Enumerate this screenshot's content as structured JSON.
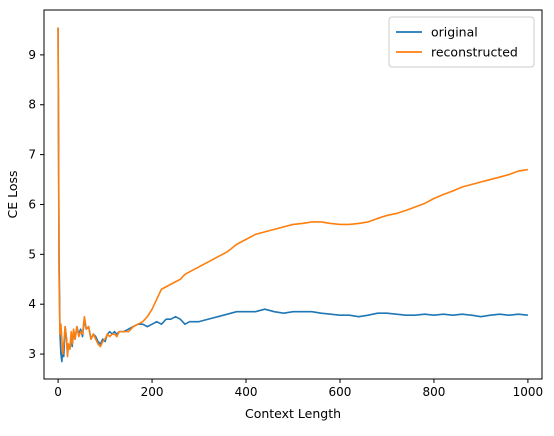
{
  "chart_data": {
    "type": "line",
    "title": "",
    "xlabel": "Context Length",
    "ylabel": "CE Loss",
    "xlim": [
      -30,
      1030
    ],
    "ylim": [
      2.5,
      9.9
    ],
    "xticks": [
      0,
      200,
      400,
      600,
      800,
      1000
    ],
    "yticks": [
      3,
      4,
      5,
      6,
      7,
      8,
      9
    ],
    "grid": false,
    "legend_position": "top-right",
    "series": [
      {
        "name": "original",
        "color": "#1f77b4",
        "x": [
          0,
          2,
          4,
          6,
          8,
          10,
          12,
          15,
          18,
          20,
          22,
          25,
          28,
          30,
          33,
          36,
          40,
          44,
          48,
          52,
          56,
          60,
          65,
          70,
          75,
          80,
          85,
          90,
          95,
          100,
          105,
          110,
          115,
          120,
          125,
          130,
          140,
          150,
          160,
          170,
          180,
          190,
          200,
          210,
          220,
          230,
          240,
          250,
          260,
          270,
          280,
          290,
          300,
          320,
          340,
          360,
          380,
          400,
          420,
          440,
          460,
          480,
          500,
          520,
          540,
          560,
          580,
          600,
          620,
          640,
          660,
          680,
          700,
          720,
          740,
          760,
          780,
          800,
          820,
          840,
          860,
          880,
          900,
          920,
          940,
          960,
          980,
          1000
        ],
        "y": [
          9.55,
          5.0,
          3.4,
          3.0,
          2.85,
          3.1,
          2.95,
          3.55,
          3.3,
          3.0,
          3.2,
          3.1,
          3.35,
          3.15,
          3.45,
          3.3,
          3.55,
          3.4,
          3.5,
          3.35,
          3.7,
          3.5,
          3.55,
          3.3,
          3.4,
          3.35,
          3.25,
          3.2,
          3.3,
          3.25,
          3.4,
          3.45,
          3.4,
          3.45,
          3.4,
          3.45,
          3.45,
          3.5,
          3.55,
          3.6,
          3.6,
          3.55,
          3.6,
          3.65,
          3.6,
          3.7,
          3.7,
          3.75,
          3.7,
          3.6,
          3.65,
          3.65,
          3.65,
          3.7,
          3.75,
          3.8,
          3.85,
          3.85,
          3.85,
          3.9,
          3.85,
          3.82,
          3.85,
          3.85,
          3.85,
          3.82,
          3.8,
          3.78,
          3.78,
          3.75,
          3.78,
          3.82,
          3.82,
          3.8,
          3.78,
          3.78,
          3.8,
          3.78,
          3.8,
          3.78,
          3.8,
          3.78,
          3.75,
          3.78,
          3.8,
          3.78,
          3.8,
          3.78
        ]
      },
      {
        "name": "reconstructed",
        "color": "#ff7f0e",
        "x": [
          0,
          2,
          4,
          6,
          8,
          10,
          12,
          15,
          18,
          20,
          22,
          25,
          28,
          30,
          33,
          36,
          40,
          44,
          48,
          52,
          56,
          60,
          65,
          70,
          75,
          80,
          85,
          90,
          95,
          100,
          105,
          110,
          115,
          120,
          125,
          130,
          140,
          150,
          160,
          170,
          180,
          190,
          200,
          210,
          220,
          230,
          240,
          250,
          260,
          270,
          280,
          290,
          300,
          320,
          340,
          360,
          380,
          400,
          420,
          440,
          460,
          480,
          500,
          520,
          540,
          560,
          580,
          600,
          620,
          640,
          660,
          680,
          700,
          720,
          740,
          760,
          780,
          800,
          820,
          840,
          860,
          880,
          900,
          920,
          940,
          960,
          980,
          1000
        ],
        "y": [
          9.55,
          4.6,
          3.4,
          3.6,
          3.3,
          3.0,
          3.2,
          3.55,
          3.3,
          2.95,
          3.2,
          3.1,
          3.45,
          3.2,
          3.5,
          3.3,
          3.55,
          3.35,
          3.45,
          3.4,
          3.75,
          3.5,
          3.55,
          3.3,
          3.4,
          3.3,
          3.2,
          3.15,
          3.25,
          3.3,
          3.4,
          3.35,
          3.4,
          3.4,
          3.35,
          3.45,
          3.45,
          3.45,
          3.55,
          3.6,
          3.65,
          3.75,
          3.9,
          4.1,
          4.3,
          4.35,
          4.4,
          4.45,
          4.5,
          4.6,
          4.65,
          4.7,
          4.75,
          4.85,
          4.95,
          5.05,
          5.2,
          5.3,
          5.4,
          5.45,
          5.5,
          5.55,
          5.6,
          5.62,
          5.65,
          5.65,
          5.62,
          5.6,
          5.6,
          5.62,
          5.65,
          5.72,
          5.78,
          5.82,
          5.88,
          5.95,
          6.02,
          6.12,
          6.2,
          6.27,
          6.35,
          6.4,
          6.45,
          6.5,
          6.55,
          6.6,
          6.67,
          6.7
        ]
      }
    ]
  }
}
